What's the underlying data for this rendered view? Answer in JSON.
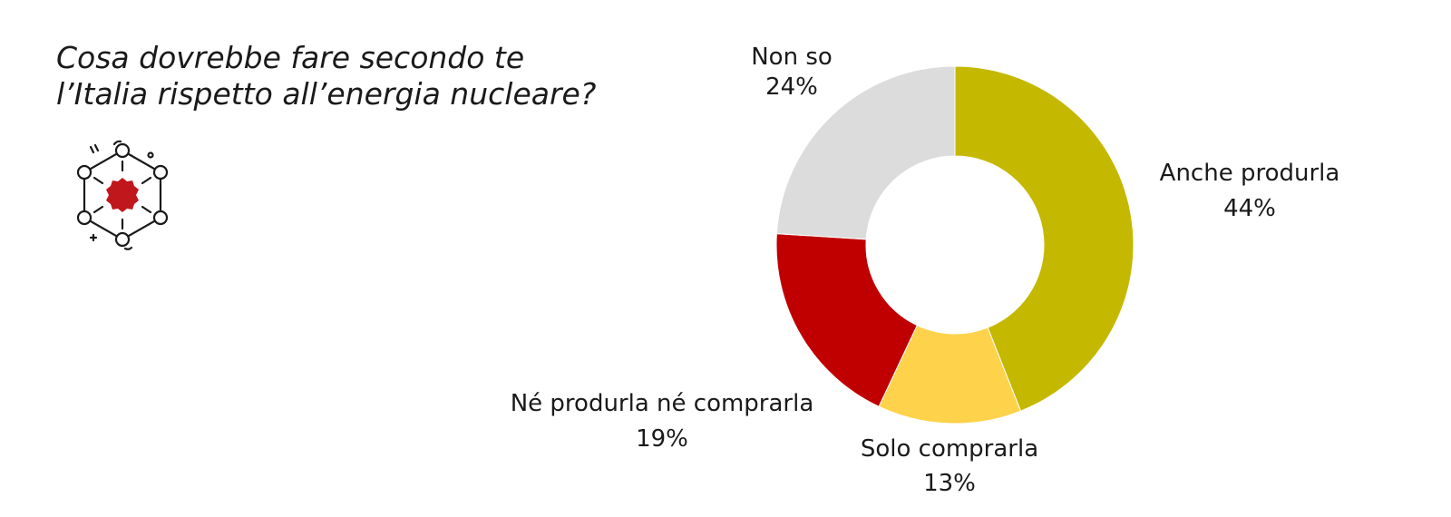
{
  "question": {
    "line1": "Cosa dovrebbe fare secondo te",
    "line2": "l’Italia rispetto all’energia nucleare?"
  },
  "icon": {
    "name": "nuclear-atom-icon",
    "core_color": "#c0171c",
    "outline_color": "#1a1a1a"
  },
  "chart_data": {
    "type": "pie",
    "variant": "donut",
    "categories": [
      "Anche produrla",
      "Solo comprarla",
      "Né produrla né comprarla",
      "Non so"
    ],
    "values": [
      44,
      13,
      19,
      24
    ],
    "value_labels": [
      "44%",
      "13%",
      "19%",
      "24%"
    ],
    "colors": [
      "#c5b800",
      "#fed24a",
      "#c00000",
      "#dcdcdc"
    ],
    "start": "12 o'clock",
    "direction": "clockwise"
  }
}
